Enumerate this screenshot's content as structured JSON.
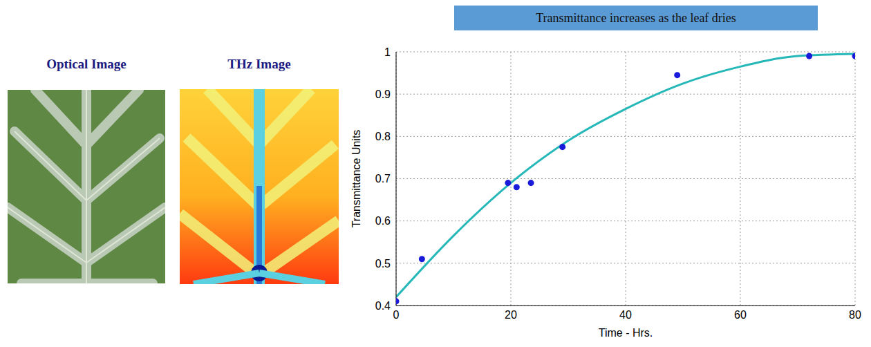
{
  "images": [
    {
      "title": "Optical Image"
    },
    {
      "title": "THz Image"
    }
  ],
  "chart_data": {
    "type": "scatter",
    "title": "Transmittance increases as the leaf dries",
    "x_label": "Time - Hrs.",
    "y_label": "Transmittance Units",
    "xlim": [
      0,
      80
    ],
    "xticks": [
      0,
      20,
      40,
      60,
      80
    ],
    "ylim": [
      0.4,
      1
    ],
    "yticks": [
      0.4,
      0.5,
      0.6,
      0.7,
      0.8,
      0.9,
      1
    ],
    "grid": true,
    "series": [
      {
        "type": "scatter",
        "color": "#1a1adb",
        "marker": "circle",
        "x": [
          0,
          4.5,
          19.5,
          21,
          23.5,
          29,
          49,
          72,
          80
        ],
        "values": [
          0.41,
          0.51,
          0.69,
          0.68,
          0.69,
          0.775,
          0.945,
          0.99,
          0.99
        ]
      },
      {
        "type": "line",
        "color": "#26b8b8",
        "line_style": "solid",
        "x": [
          0,
          10,
          20,
          30,
          40,
          50,
          60,
          70,
          80
        ],
        "values": [
          0.42,
          0.565,
          0.69,
          0.79,
          0.865,
          0.925,
          0.965,
          0.99,
          0.995
        ]
      }
    ]
  }
}
